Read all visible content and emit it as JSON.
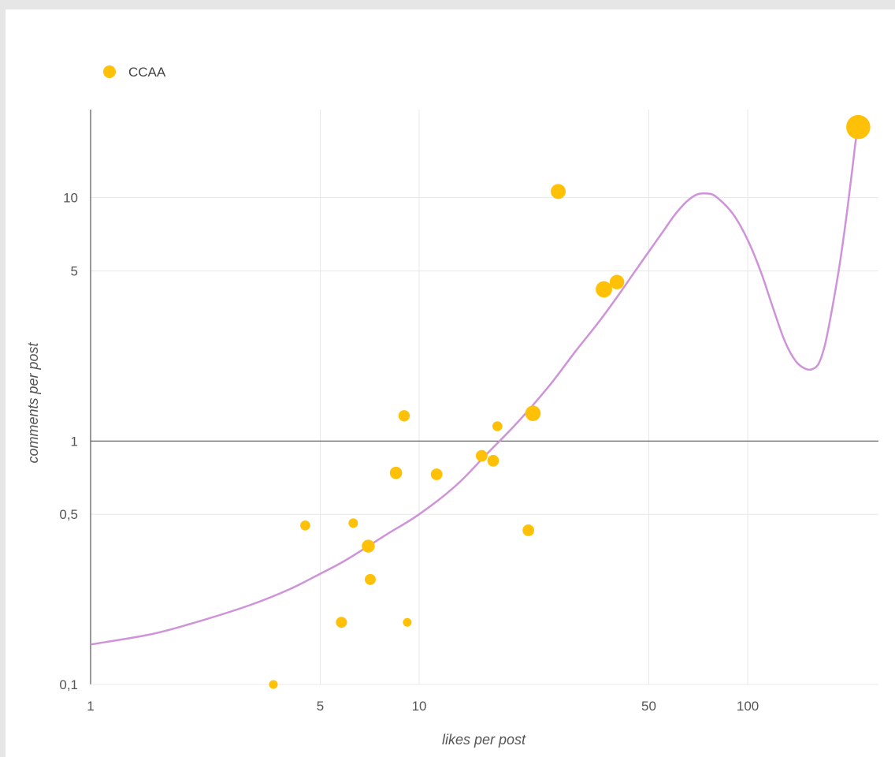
{
  "chart_data": {
    "type": "scatter",
    "title": "",
    "xlabel": "likes per post",
    "ylabel": "comments per post",
    "x_scale": "log",
    "y_scale": "log",
    "xlim": [
      1,
      250
    ],
    "ylim": [
      0.1,
      23
    ],
    "x_ticks": [
      {
        "value": 1,
        "label": "1"
      },
      {
        "value": 5,
        "label": "5"
      },
      {
        "value": 10,
        "label": "10"
      },
      {
        "value": 50,
        "label": "50"
      },
      {
        "value": 100,
        "label": "100"
      }
    ],
    "y_ticks": [
      {
        "value": 0.1,
        "label": "0,1"
      },
      {
        "value": 0.5,
        "label": "0,5"
      },
      {
        "value": 1,
        "label": "1"
      },
      {
        "value": 5,
        "label": "5"
      },
      {
        "value": 10,
        "label": "10"
      }
    ],
    "grid": true,
    "legend": {
      "position": "top-left",
      "entries": [
        "CCAA"
      ]
    },
    "colors": {
      "points": "#FFC107",
      "trendline": "#CE93D8",
      "grid": "#e8e8e8",
      "axis": "#555555"
    },
    "series": [
      {
        "name": "CCAA",
        "points": [
          {
            "x": 3.6,
            "y": 0.1,
            "size": 1
          },
          {
            "x": 4.5,
            "y": 0.45,
            "size": 1.3
          },
          {
            "x": 5.8,
            "y": 0.18,
            "size": 1.6
          },
          {
            "x": 6.3,
            "y": 0.46,
            "size": 1.2
          },
          {
            "x": 7,
            "y": 0.37,
            "size": 2.2
          },
          {
            "x": 7.1,
            "y": 0.27,
            "size": 1.6
          },
          {
            "x": 8.5,
            "y": 0.74,
            "size": 2.0
          },
          {
            "x": 9,
            "y": 1.27,
            "size": 1.7
          },
          {
            "x": 9.2,
            "y": 0.18,
            "size": 1.0
          },
          {
            "x": 11.3,
            "y": 0.73,
            "size": 1.8
          },
          {
            "x": 15.5,
            "y": 0.87,
            "size": 1.8
          },
          {
            "x": 16.8,
            "y": 0.83,
            "size": 1.8
          },
          {
            "x": 17.3,
            "y": 1.15,
            "size": 1.3
          },
          {
            "x": 21.5,
            "y": 0.43,
            "size": 1.8
          },
          {
            "x": 22.2,
            "y": 1.3,
            "size": 3.2
          },
          {
            "x": 26.5,
            "y": 10.6,
            "size": 3.0
          },
          {
            "x": 36.5,
            "y": 4.2,
            "size": 3.6
          },
          {
            "x": 40,
            "y": 4.5,
            "size": 2.8
          },
          {
            "x": 217,
            "y": 19.5,
            "size": 7.7
          }
        ]
      }
    ],
    "trendline": {
      "points": [
        [
          1,
          0.146
        ],
        [
          1.5,
          0.16
        ],
        [
          2,
          0.177
        ],
        [
          3,
          0.21
        ],
        [
          4,
          0.245
        ],
        [
          5,
          0.285
        ],
        [
          6,
          0.325
        ],
        [
          8,
          0.415
        ],
        [
          10,
          0.5
        ],
        [
          13,
          0.66
        ],
        [
          16,
          0.88
        ],
        [
          20,
          1.2
        ],
        [
          25,
          1.7
        ],
        [
          30,
          2.35
        ],
        [
          35,
          3.05
        ],
        [
          40,
          3.9
        ],
        [
          45,
          4.9
        ],
        [
          50,
          6.0
        ],
        [
          55,
          7.2
        ],
        [
          60,
          8.5
        ],
        [
          65,
          9.6
        ],
        [
          70,
          10.3
        ],
        [
          75,
          10.4
        ],
        [
          80,
          10.1
        ],
        [
          90,
          8.6
        ],
        [
          100,
          6.7
        ],
        [
          110,
          4.9
        ],
        [
          120,
          3.45
        ],
        [
          130,
          2.55
        ],
        [
          140,
          2.13
        ],
        [
          150,
          1.98
        ],
        [
          158,
          1.98
        ],
        [
          165,
          2.1
        ],
        [
          172,
          2.5
        ],
        [
          180,
          3.4
        ],
        [
          190,
          5.2
        ],
        [
          200,
          8.5
        ],
        [
          208,
          13
        ],
        [
          213,
          17
        ],
        [
          217,
          19.5
        ]
      ]
    }
  }
}
